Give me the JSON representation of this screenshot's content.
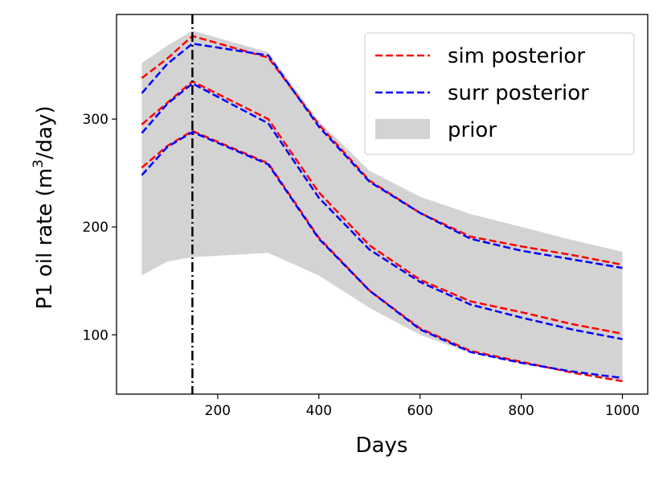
{
  "chart_data": {
    "type": "line",
    "title": "",
    "xlabel": "Days",
    "ylabel_main": "P1 oil rate (m",
    "ylabel_sup": "3",
    "ylabel_tail": "/day)",
    "xlim": [
      0,
      1050
    ],
    "ylim": [
      45,
      397
    ],
    "xticks": [
      200,
      400,
      600,
      800,
      1000
    ],
    "xtick_labels": [
      "200",
      "400",
      "600",
      "800",
      "1000"
    ],
    "yticks": [
      100,
      200,
      300
    ],
    "ytick_labels": [
      "100",
      "200",
      "300"
    ],
    "vline_x": 150,
    "legend": {
      "placement": "top-right",
      "entries": [
        {
          "label": "sim posterior",
          "color": "#ff0000",
          "style": "dashed"
        },
        {
          "label": "surr posterior",
          "color": "#0000ff",
          "style": "dashed"
        },
        {
          "label": "prior",
          "color": "#d3d3d3",
          "style": "fill"
        }
      ]
    },
    "prior_band": {
      "x": [
        50,
        100,
        150,
        300,
        400,
        500,
        600,
        700,
        800,
        900,
        1000
      ],
      "upper": [
        352,
        368,
        382,
        362,
        298,
        252,
        228,
        212,
        200,
        188,
        177
      ],
      "lower": [
        155,
        168,
        172,
        176,
        155,
        125,
        100,
        83,
        73,
        65,
        57
      ]
    },
    "series": [
      {
        "name": "sim posterior upper",
        "group": "sim posterior",
        "color": "#ff0000",
        "x": [
          50,
          100,
          150,
          300,
          400,
          500,
          600,
          700,
          800,
          900,
          1000
        ],
        "values": [
          338,
          356,
          377,
          357,
          295,
          243,
          213,
          191,
          182,
          174,
          165
        ]
      },
      {
        "name": "sim posterior median",
        "group": "sim posterior",
        "color": "#ff0000",
        "x": [
          50,
          100,
          150,
          300,
          400,
          500,
          600,
          700,
          800,
          900,
          1000
        ],
        "values": [
          295,
          315,
          335,
          300,
          232,
          183,
          151,
          131,
          121,
          110,
          101
        ]
      },
      {
        "name": "sim posterior lower",
        "group": "sim posterior",
        "color": "#ff0000",
        "x": [
          50,
          100,
          150,
          300,
          400,
          500,
          600,
          700,
          800,
          900,
          1000
        ],
        "values": [
          255,
          275,
          289,
          259,
          190,
          141,
          106,
          85,
          75,
          65,
          57
        ]
      },
      {
        "name": "surr posterior upper",
        "group": "surr posterior",
        "color": "#0000ff",
        "x": [
          50,
          100,
          150,
          300,
          400,
          500,
          600,
          700,
          800,
          900,
          1000
        ],
        "values": [
          324,
          351,
          370,
          359,
          293,
          242,
          213,
          189,
          178,
          170,
          162
        ]
      },
      {
        "name": "surr posterior median",
        "group": "surr posterior",
        "color": "#0000ff",
        "x": [
          50,
          100,
          150,
          300,
          400,
          500,
          600,
          700,
          800,
          900,
          1000
        ],
        "values": [
          287,
          314,
          333,
          296,
          227,
          179,
          149,
          128,
          116,
          105,
          96
        ]
      },
      {
        "name": "surr posterior lower",
        "group": "surr posterior",
        "color": "#0000ff",
        "x": [
          50,
          100,
          150,
          300,
          400,
          500,
          600,
          700,
          800,
          900,
          1000
        ],
        "values": [
          248,
          274,
          288,
          258,
          189,
          141,
          105,
          84,
          74,
          66,
          60
        ]
      }
    ]
  }
}
